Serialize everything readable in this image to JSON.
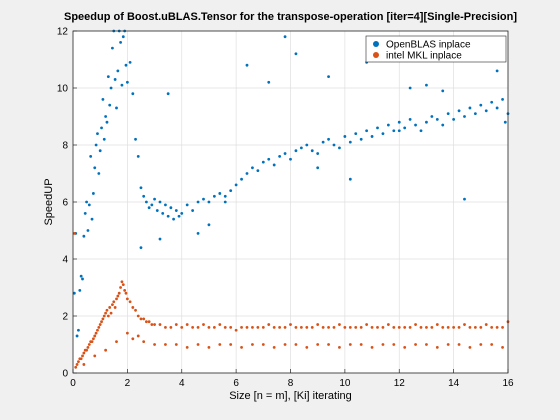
{
  "chart_data": {
    "type": "scatter",
    "title": "Speedup of Boost.uBLAS.Tensor for the transpose-operation [iter=4][Single-Precision]",
    "xlabel": "Size [n = m], [Ki] iterating",
    "ylabel": "SpeedUP",
    "xlim": [
      0,
      16
    ],
    "ylim": [
      0,
      12
    ],
    "xticks": [
      0,
      2,
      4,
      6,
      8,
      10,
      12,
      14,
      16
    ],
    "yticks": [
      0,
      2,
      4,
      6,
      8,
      10,
      12
    ],
    "grid": true,
    "legend_position": "top-right",
    "series": [
      {
        "name": "OpenBLAS inplace",
        "color": "#0072bd",
        "x": [
          0.05,
          0.1,
          0.15,
          0.2,
          0.25,
          0.3,
          0.35,
          0.4,
          0.45,
          0.5,
          0.55,
          0.6,
          0.65,
          0.7,
          0.75,
          0.8,
          0.85,
          0.9,
          0.95,
          1.0,
          1.05,
          1.1,
          1.15,
          1.2,
          1.25,
          1.3,
          1.35,
          1.4,
          1.45,
          1.5,
          1.55,
          1.6,
          1.65,
          1.7,
          1.75,
          1.8,
          1.85,
          1.9,
          1.95,
          2.0,
          2.1,
          2.2,
          2.3,
          2.4,
          2.5,
          2.6,
          2.7,
          2.8,
          2.9,
          3.0,
          3.1,
          3.2,
          3.3,
          3.4,
          3.5,
          3.6,
          3.7,
          3.8,
          3.9,
          4.0,
          4.2,
          4.4,
          4.6,
          4.8,
          5.0,
          5.2,
          5.4,
          5.6,
          5.8,
          6.0,
          6.2,
          6.4,
          6.6,
          6.8,
          7.0,
          7.2,
          7.4,
          7.6,
          7.8,
          8.0,
          8.2,
          8.4,
          8.6,
          8.8,
          9.0,
          9.2,
          9.4,
          9.6,
          9.8,
          10.0,
          10.2,
          10.4,
          10.6,
          10.8,
          11.0,
          11.2,
          11.4,
          11.6,
          11.8,
          12.0,
          12.2,
          12.4,
          12.6,
          12.8,
          13.0,
          13.2,
          13.4,
          13.6,
          13.8,
          14.0,
          14.2,
          14.4,
          14.6,
          14.8,
          15.0,
          15.2,
          15.4,
          15.6,
          15.8,
          16.0,
          2.5,
          3.5,
          5.0,
          6.4,
          7.2,
          8.2,
          9.4,
          10.2,
          11.1,
          12.4,
          13.6,
          14.8,
          15.6,
          3.2,
          4.6,
          5.6,
          7.8,
          9.0,
          10.8,
          12.0,
          13.0,
          14.4,
          15.2,
          15.9
        ],
        "y": [
          2.8,
          4.9,
          1.3,
          1.5,
          2.9,
          3.4,
          3.3,
          4.8,
          5.6,
          6.0,
          5.0,
          5.9,
          7.6,
          5.4,
          6.3,
          7.2,
          8.0,
          8.4,
          7.0,
          7.8,
          8.6,
          9.6,
          8.2,
          9.0,
          8.8,
          10.4,
          9.4,
          10.0,
          11.4,
          12.0,
          10.3,
          9.3,
          10.6,
          12.0,
          11.6,
          10.1,
          11.8,
          12.0,
          10.8,
          10.2,
          10.9,
          9.8,
          8.2,
          7.6,
          6.5,
          6.2,
          6.0,
          5.8,
          5.9,
          6.1,
          5.7,
          6.0,
          5.6,
          5.9,
          5.5,
          5.8,
          5.4,
          5.7,
          5.5,
          5.6,
          5.9,
          5.7,
          6.0,
          6.1,
          6.0,
          6.2,
          6.3,
          6.0,
          6.4,
          6.6,
          6.8,
          7.0,
          7.2,
          7.1,
          7.4,
          7.5,
          7.3,
          7.6,
          7.7,
          7.5,
          7.8,
          7.9,
          8.0,
          7.8,
          7.7,
          8.1,
          8.2,
          8.0,
          7.9,
          8.3,
          8.1,
          8.4,
          8.2,
          8.5,
          8.3,
          8.6,
          8.4,
          8.7,
          8.5,
          8.8,
          8.6,
          8.9,
          8.7,
          8.5,
          8.8,
          9.0,
          8.9,
          8.7,
          9.1,
          8.9,
          9.2,
          9.0,
          9.3,
          9.1,
          9.4,
          9.2,
          9.5,
          9.3,
          9.6,
          9.1,
          4.4,
          9.8,
          5.2,
          10.8,
          10.2,
          11.2,
          10.4,
          6.8,
          11.6,
          10.0,
          9.9,
          11.0,
          10.6,
          4.7,
          4.9,
          6.2,
          11.8,
          7.2,
          10.9,
          8.5,
          10.1,
          6.1,
          11.2,
          8.8
        ]
      },
      {
        "name": "intel MKL inplace",
        "color": "#d95319",
        "x": [
          0.05,
          0.1,
          0.15,
          0.2,
          0.25,
          0.3,
          0.35,
          0.4,
          0.45,
          0.5,
          0.55,
          0.6,
          0.65,
          0.7,
          0.75,
          0.8,
          0.85,
          0.9,
          0.95,
          1.0,
          1.05,
          1.1,
          1.15,
          1.2,
          1.25,
          1.3,
          1.35,
          1.4,
          1.45,
          1.5,
          1.55,
          1.6,
          1.65,
          1.7,
          1.75,
          1.8,
          1.85,
          1.9,
          1.95,
          2.0,
          2.1,
          2.2,
          2.3,
          2.4,
          2.5,
          2.6,
          2.7,
          2.8,
          2.9,
          3.0,
          3.2,
          3.4,
          3.6,
          3.8,
          4.0,
          4.2,
          4.4,
          4.6,
          4.8,
          5.0,
          5.2,
          5.4,
          5.6,
          5.8,
          6.0,
          6.2,
          6.4,
          6.6,
          6.8,
          7.0,
          7.2,
          7.4,
          7.6,
          7.8,
          8.0,
          8.2,
          8.4,
          8.6,
          8.8,
          9.0,
          9.2,
          9.4,
          9.6,
          9.8,
          10.0,
          10.2,
          10.4,
          10.6,
          10.8,
          11.0,
          11.2,
          11.4,
          11.6,
          11.8,
          12.0,
          12.2,
          12.4,
          12.6,
          12.8,
          13.0,
          13.2,
          13.4,
          13.6,
          13.8,
          14.0,
          14.2,
          14.4,
          14.6,
          14.8,
          15.0,
          15.2,
          15.4,
          15.6,
          15.8,
          16.0,
          2.2,
          2.6,
          3.0,
          3.4,
          3.8,
          4.2,
          4.6,
          5.0,
          5.4,
          5.8,
          6.2,
          6.6,
          7.0,
          7.4,
          7.8,
          8.2,
          8.6,
          9.0,
          9.4,
          9.8,
          10.2,
          10.6,
          11.0,
          11.4,
          11.8,
          12.2,
          12.6,
          13.0,
          13.4,
          13.8,
          14.2,
          14.6,
          15.0,
          15.4,
          15.8,
          0.4,
          0.8,
          1.2,
          1.6,
          2.0,
          2.4
        ],
        "y": [
          4.9,
          0.2,
          0.3,
          0.4,
          0.5,
          0.5,
          0.6,
          0.7,
          0.8,
          0.8,
          0.9,
          1.0,
          1.1,
          1.1,
          1.2,
          1.3,
          1.4,
          1.5,
          1.6,
          1.7,
          1.8,
          1.9,
          2.0,
          2.1,
          2.2,
          2.0,
          2.3,
          2.1,
          2.4,
          2.5,
          2.3,
          2.6,
          2.7,
          2.8,
          3.0,
          3.2,
          3.1,
          2.9,
          2.8,
          2.6,
          2.5,
          2.3,
          2.2,
          2.0,
          1.9,
          1.9,
          1.8,
          1.8,
          1.7,
          1.7,
          1.7,
          1.6,
          1.6,
          1.7,
          1.6,
          1.7,
          1.6,
          1.6,
          1.7,
          1.6,
          1.6,
          1.7,
          1.6,
          1.6,
          1.5,
          1.6,
          1.6,
          1.6,
          1.6,
          1.6,
          1.7,
          1.6,
          1.6,
          1.6,
          1.7,
          1.6,
          1.6,
          1.6,
          1.6,
          1.7,
          1.6,
          1.6,
          1.6,
          1.7,
          1.6,
          1.6,
          1.6,
          1.6,
          1.7,
          1.6,
          1.6,
          1.6,
          1.7,
          1.6,
          1.6,
          1.6,
          1.6,
          1.7,
          1.6,
          1.6,
          1.6,
          1.7,
          1.6,
          1.6,
          1.6,
          1.6,
          1.7,
          1.6,
          1.6,
          1.6,
          1.7,
          1.6,
          1.6,
          1.6,
          1.8,
          1.2,
          1.1,
          1.0,
          1.0,
          1.0,
          0.9,
          1.0,
          0.9,
          1.0,
          1.0,
          0.9,
          1.0,
          1.0,
          0.9,
          1.0,
          1.0,
          0.9,
          1.0,
          1.0,
          0.9,
          1.0,
          1.0,
          0.9,
          1.0,
          1.0,
          0.9,
          1.0,
          1.0,
          0.9,
          1.0,
          1.0,
          0.9,
          1.0,
          1.0,
          0.9,
          0.3,
          0.6,
          0.8,
          1.1,
          1.4,
          1.3
        ]
      }
    ]
  }
}
